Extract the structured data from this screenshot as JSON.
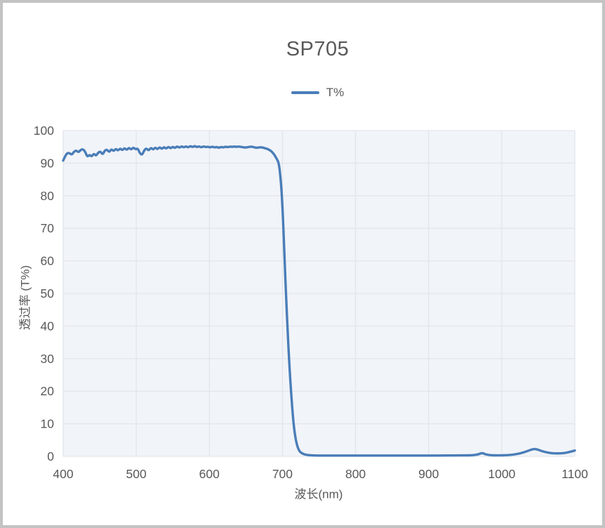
{
  "chart_data": {
    "type": "line",
    "title": "SP705",
    "xlabel": "波长(nm)",
    "ylabel": "透过率 (T%)",
    "xlim": [
      400,
      1100
    ],
    "ylim": [
      0,
      100
    ],
    "x_ticks": [
      400,
      500,
      600,
      700,
      800,
      900,
      1000,
      1100
    ],
    "y_ticks": [
      0,
      10,
      20,
      30,
      40,
      50,
      60,
      70,
      80,
      90,
      100
    ],
    "grid": true,
    "legend_position": "top-center",
    "style": {
      "line_color": "#4a7db8",
      "panel_color": "#f1f4f8",
      "grid_color": "#e2e6ec",
      "text_color": "#595959",
      "frame_border_color": "#c3c3c3",
      "line_width": 3.4
    },
    "series": [
      {
        "name": "T%",
        "color": "#4a7db8",
        "x": [
          400,
          403,
          406,
          409,
          412,
          415,
          418,
          421,
          424,
          427,
          430,
          433,
          436,
          439,
          442,
          445,
          448,
          451,
          454,
          457,
          460,
          463,
          466,
          469,
          472,
          475,
          478,
          481,
          484,
          487,
          490,
          493,
          496,
          499,
          502,
          505,
          508,
          511,
          514,
          517,
          520,
          523,
          526,
          529,
          532,
          535,
          538,
          541,
          544,
          547,
          550,
          553,
          556,
          559,
          562,
          565,
          568,
          571,
          574,
          577,
          580,
          583,
          586,
          589,
          592,
          595,
          598,
          601,
          604,
          607,
          610,
          613,
          616,
          619,
          622,
          625,
          628,
          631,
          634,
          637,
          640,
          643,
          646,
          649,
          652,
          655,
          658,
          661,
          664,
          667,
          670,
          673,
          676,
          679,
          682,
          685,
          688,
          691,
          693,
          695,
          697,
          699,
          701,
          703,
          705,
          707,
          709,
          711,
          713,
          715,
          717,
          719,
          721,
          723,
          725,
          728,
          732,
          737,
          745,
          760,
          780,
          800,
          820,
          840,
          860,
          880,
          900,
          920,
          940,
          950,
          960,
          968,
          973,
          978,
          985,
          995,
          1005,
          1015,
          1025,
          1035,
          1043,
          1048,
          1055,
          1063,
          1070,
          1078,
          1085,
          1092,
          1100
        ],
        "y": [
          90.8,
          92.3,
          93.2,
          93.0,
          92.6,
          93.6,
          93.9,
          93.3,
          94.1,
          94.3,
          93.6,
          91.9,
          92.6,
          92.0,
          93.0,
          92.2,
          93.3,
          93.6,
          92.6,
          93.9,
          94.2,
          93.3,
          94.4,
          93.6,
          94.5,
          93.8,
          94.6,
          93.9,
          94.7,
          94.0,
          94.8,
          94.1,
          94.9,
          94.2,
          94.6,
          93.0,
          92.5,
          94.0,
          94.6,
          93.8,
          94.8,
          94.1,
          94.9,
          94.2,
          95.0,
          94.3,
          95.0,
          94.4,
          95.1,
          94.5,
          95.1,
          94.6,
          95.2,
          94.7,
          95.2,
          94.8,
          95.2,
          94.8,
          95.3,
          94.9,
          95.3,
          94.9,
          95.2,
          94.8,
          95.2,
          94.9,
          95.1,
          94.8,
          95.1,
          94.8,
          95.0,
          94.7,
          95.0,
          94.8,
          95.1,
          94.9,
          95.1,
          95.0,
          95.1,
          95.0,
          95.1,
          95.0,
          94.9,
          94.8,
          94.9,
          95.0,
          95.1,
          94.9,
          94.7,
          94.8,
          94.9,
          94.8,
          94.6,
          94.4,
          94.1,
          93.6,
          92.9,
          91.8,
          91.0,
          90.0,
          86.5,
          81.0,
          72.0,
          60.0,
          49.0,
          39.0,
          30.0,
          22.5,
          16.0,
          10.5,
          6.8,
          4.3,
          2.7,
          1.7,
          1.2,
          0.8,
          0.5,
          0.35,
          0.28,
          0.25,
          0.25,
          0.25,
          0.25,
          0.25,
          0.25,
          0.25,
          0.25,
          0.27,
          0.3,
          0.3,
          0.35,
          0.6,
          1.1,
          0.6,
          0.35,
          0.3,
          0.35,
          0.5,
          0.9,
          1.6,
          2.3,
          2.2,
          1.6,
          1.15,
          0.95,
          0.9,
          1.0,
          1.3,
          1.8
        ]
      }
    ]
  }
}
